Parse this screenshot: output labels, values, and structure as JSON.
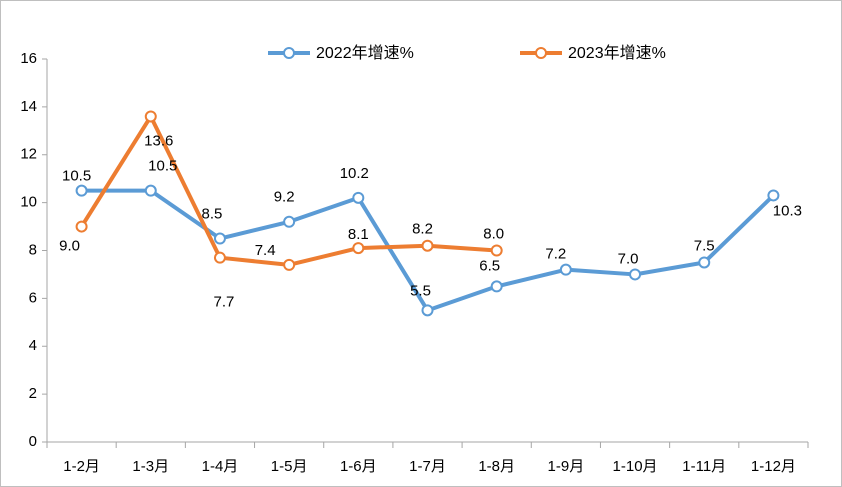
{
  "chart_data": {
    "type": "line",
    "categories": [
      "1-2月",
      "1-3月",
      "1-4月",
      "1-5月",
      "1-6月",
      "1-7月",
      "1-8月",
      "1-9月",
      "1-10月",
      "1-11月",
      "1-12月"
    ],
    "series": [
      {
        "name": "2022年增速%",
        "color": "#5b9bd5",
        "values": [
          10.5,
          10.5,
          8.5,
          9.2,
          10.2,
          5.5,
          6.5,
          7.2,
          7.0,
          7.5,
          10.3
        ],
        "value_labels": [
          "10.5",
          "10.5",
          "8.5",
          "9.2",
          "10.2",
          "5.5",
          "6.5",
          "7.2",
          "7.0",
          "7.5",
          "10.3"
        ]
      },
      {
        "name": "2023年增速%",
        "color": "#ed7d31",
        "values": [
          9.0,
          13.6,
          7.7,
          7.4,
          8.1,
          8.2,
          8.0,
          null,
          null,
          null,
          null
        ],
        "value_labels": [
          "9.0",
          "13.6",
          "7.7",
          "7.4",
          "8.1",
          "8.2",
          "8.0",
          null,
          null,
          null,
          null
        ]
      }
    ],
    "ylim": [
      0,
      16
    ],
    "yticks": [
      0,
      2,
      4,
      6,
      8,
      10,
      12,
      14,
      16
    ],
    "legend": "top"
  }
}
